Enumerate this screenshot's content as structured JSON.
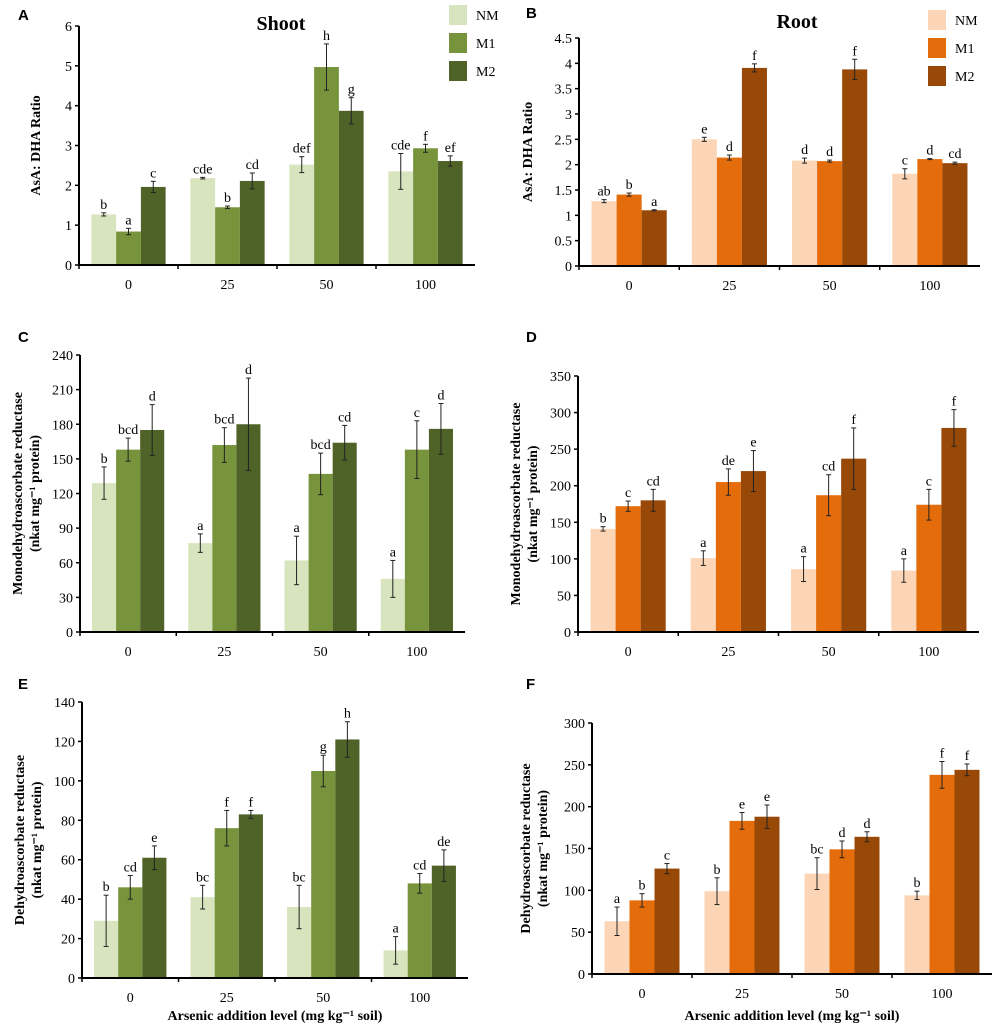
{
  "chart_data": [
    {
      "panel": "A",
      "type": "bar",
      "title": "Shoot",
      "ylabel": [
        "AsA: DHA Ratio"
      ],
      "xlabel": "",
      "ylim": [
        0,
        6
      ],
      "ystep": 1,
      "categories": [
        "0",
        "25",
        "50",
        "100"
      ],
      "palette": "green",
      "series": [
        {
          "name": "NM",
          "color": "#d8e4bd",
          "values": [
            1.27,
            2.18,
            2.52,
            2.35
          ],
          "errors": [
            0.04,
            0.02,
            0.2,
            0.45
          ],
          "letters": [
            "b",
            "cde",
            "def",
            "cde"
          ]
        },
        {
          "name": "M1",
          "color": "#77933c",
          "values": [
            0.84,
            1.45,
            4.97,
            2.93
          ],
          "errors": [
            0.08,
            0.03,
            0.58,
            0.1
          ],
          "letters": [
            "a",
            "b",
            "h",
            "f"
          ]
        },
        {
          "name": "M2",
          "color": "#4f6228",
          "values": [
            1.96,
            2.11,
            3.87,
            2.61
          ],
          "errors": [
            0.14,
            0.2,
            0.33,
            0.13
          ],
          "letters": [
            "c",
            "cd",
            "g",
            "ef"
          ]
        }
      ],
      "legend": "top-right"
    },
    {
      "panel": "B",
      "type": "bar",
      "title": "Root",
      "ylabel": [
        "AsA: DHA Ratio"
      ],
      "xlabel": "",
      "ylim": [
        0,
        4.5
      ],
      "ystep": 0.5,
      "categories": [
        "0",
        "25",
        "50",
        "100"
      ],
      "series": [
        {
          "name": "NM",
          "color": "#fbd5b5",
          "values": [
            1.28,
            2.5,
            2.08,
            1.82
          ],
          "errors": [
            0.03,
            0.04,
            0.05,
            0.1
          ],
          "letters": [
            "ab",
            "e",
            "d",
            "c"
          ]
        },
        {
          "name": "M1",
          "color": "#e46c0a",
          "values": [
            1.41,
            2.14,
            2.07,
            2.11
          ],
          "errors": [
            0.03,
            0.05,
            0.02,
            0.01
          ],
          "letters": [
            "b",
            "d",
            "d",
            "d"
          ]
        },
        {
          "name": "M2",
          "color": "#984807",
          "values": [
            1.1,
            3.91,
            3.88,
            2.03
          ],
          "errors": [
            0.01,
            0.08,
            0.2,
            0.02
          ],
          "letters": [
            "a",
            "f",
            "f",
            "cd"
          ]
        }
      ],
      "legend": "top-right"
    },
    {
      "panel": "C",
      "type": "bar",
      "title": "",
      "ylabel": [
        "Monodehydroascorbate reductase",
        "(nkat mg⁻¹ protein)"
      ],
      "xlabel": "",
      "ylim": [
        0,
        240
      ],
      "ystep": 30,
      "categories": [
        "0",
        "25",
        "50",
        "100"
      ],
      "series": [
        {
          "name": "NM",
          "color": "#d8e4bd",
          "values": [
            129,
            77,
            62,
            46
          ],
          "errors": [
            14,
            8,
            21,
            16
          ],
          "letters": [
            "b",
            "a",
            "a",
            "a"
          ]
        },
        {
          "name": "M1",
          "color": "#77933c",
          "values": [
            158,
            162,
            137,
            158
          ],
          "errors": [
            10,
            15,
            18,
            25
          ],
          "letters": [
            "bcd",
            "bcd",
            "bcd",
            "c"
          ]
        },
        {
          "name": "M2",
          "color": "#4f6228",
          "values": [
            175,
            180,
            164,
            176
          ],
          "errors": [
            22,
            40,
            15,
            22
          ],
          "letters": [
            "d",
            "d",
            "cd",
            "d"
          ]
        }
      ]
    },
    {
      "panel": "D",
      "type": "bar",
      "title": "",
      "ylabel": [
        "Monodehydroascorbate reductase",
        "(nkat mg⁻¹ protein)"
      ],
      "xlabel": "",
      "ylim": [
        0,
        350
      ],
      "ystep": 50,
      "categories": [
        "0",
        "25",
        "50",
        "100"
      ],
      "series": [
        {
          "name": "NM",
          "color": "#fbd5b5",
          "values": [
            141,
            101,
            86,
            84
          ],
          "errors": [
            3,
            10,
            17,
            16
          ],
          "letters": [
            "b",
            "a",
            "a",
            "a"
          ]
        },
        {
          "name": "M1",
          "color": "#e46c0a",
          "values": [
            172,
            205,
            187,
            174
          ],
          "errors": [
            7,
            18,
            28,
            21
          ],
          "letters": [
            "c",
            "de",
            "cd",
            "c"
          ]
        },
        {
          "name": "M2",
          "color": "#984807",
          "values": [
            180,
            220,
            237,
            279
          ],
          "errors": [
            15,
            28,
            42,
            25
          ],
          "letters": [
            "cd",
            "e",
            "f",
            "f"
          ]
        }
      ]
    },
    {
      "panel": "E",
      "type": "bar",
      "title": "",
      "ylabel": [
        "Dehydroascorbate reductase",
        "(nkat mg⁻¹ protein)"
      ],
      "xlabel": "Arsenic addition level (mg kg⁻¹ soil)",
      "ylim": [
        0,
        140
      ],
      "ystep": 20,
      "categories": [
        "0",
        "25",
        "50",
        "100"
      ],
      "series": [
        {
          "name": "NM",
          "color": "#d8e4bd",
          "values": [
            29,
            41,
            36,
            14
          ],
          "errors": [
            13,
            6,
            11,
            7
          ],
          "letters": [
            "b",
            "bc",
            "bc",
            "a"
          ]
        },
        {
          "name": "M1",
          "color": "#77933c",
          "values": [
            46,
            76,
            105,
            48
          ],
          "errors": [
            6,
            9,
            8,
            5
          ],
          "letters": [
            "cd",
            "f",
            "g",
            "cd"
          ]
        },
        {
          "name": "M2",
          "color": "#4f6228",
          "values": [
            61,
            83,
            121,
            57
          ],
          "errors": [
            6,
            2,
            9,
            8
          ],
          "letters": [
            "e",
            "f",
            "h",
            "de"
          ]
        }
      ]
    },
    {
      "panel": "F",
      "type": "bar",
      "title": "",
      "ylabel": [
        "Dehydroascorbate reductase",
        "(nkat mg⁻¹ protein)"
      ],
      "xlabel": "Arsenic addition level (mg kg⁻¹ soil)",
      "ylim": [
        0,
        300
      ],
      "ystep": 50,
      "categories": [
        "0",
        "25",
        "50",
        "100"
      ],
      "series": [
        {
          "name": "NM",
          "color": "#fbd5b5",
          "values": [
            63,
            99,
            120,
            94
          ],
          "errors": [
            17,
            16,
            19,
            5
          ],
          "letters": [
            "a",
            "b",
            "bc",
            "b"
          ]
        },
        {
          "name": "M1",
          "color": "#e46c0a",
          "values": [
            88,
            183,
            149,
            238
          ],
          "errors": [
            8,
            10,
            10,
            16
          ],
          "letters": [
            "b",
            "e",
            "d",
            "f"
          ]
        },
        {
          "name": "M2",
          "color": "#984807",
          "values": [
            126,
            188,
            164,
            244
          ],
          "errors": [
            6,
            14,
            6,
            7
          ],
          "letters": [
            "c",
            "e",
            "d",
            "f"
          ]
        }
      ]
    }
  ]
}
